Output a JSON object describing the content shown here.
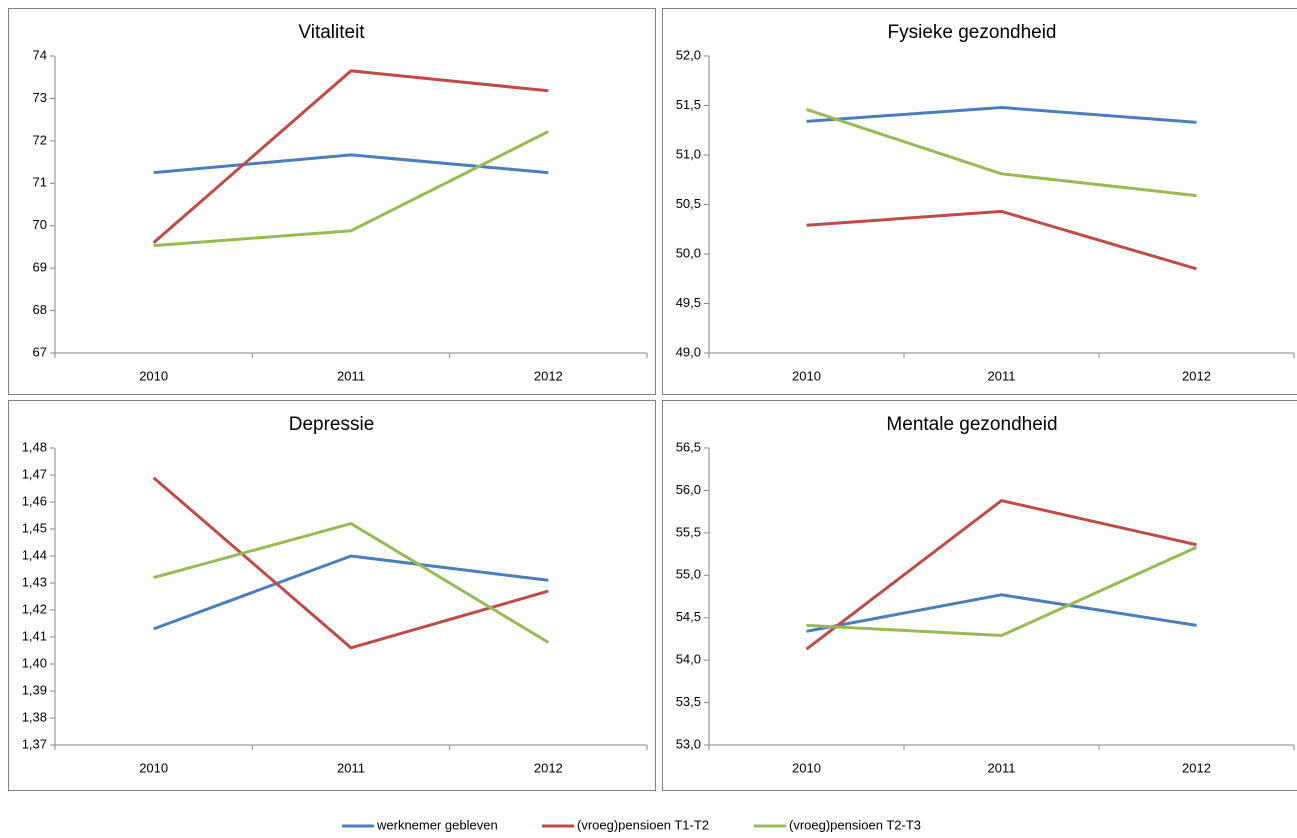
{
  "legend": {
    "series": [
      {
        "name": "werknemer gebleven",
        "color": "#4a7ebb"
      },
      {
        "name": "(vroeg)pensioen T1-T2",
        "color": "#be4b48"
      },
      {
        "name": "(vroeg)pensioen T2-T3",
        "color": "#98b954"
      }
    ]
  },
  "chart_data": [
    {
      "type": "line",
      "title": "Vitaliteit",
      "categories": [
        "2010",
        "2011",
        "2012"
      ],
      "ylim": [
        67,
        74
      ],
      "yticks": [
        67,
        68,
        69,
        70,
        71,
        72,
        73,
        74
      ],
      "series": [
        {
          "values": [
            71.25,
            71.67,
            71.25
          ]
        },
        {
          "values": [
            69.6,
            73.65,
            73.18
          ]
        },
        {
          "values": [
            69.53,
            69.88,
            72.22
          ]
        }
      ]
    },
    {
      "type": "line",
      "title": "Fysieke gezondheid",
      "categories": [
        "2010",
        "2011",
        "2012"
      ],
      "ylim": [
        49,
        52
      ],
      "yticks": [
        {
          "value": 49,
          "label": "49,0"
        },
        {
          "value": 49.5,
          "label": "49,5"
        },
        {
          "value": 50,
          "label": "50,0"
        },
        {
          "value": 50.5,
          "label": "50,5"
        },
        {
          "value": 51,
          "label": "51,0"
        },
        {
          "value": 51.5,
          "label": "51,5"
        },
        {
          "value": 52,
          "label": "52,0"
        }
      ],
      "series": [
        {
          "values": [
            51.34,
            51.48,
            51.33
          ]
        },
        {
          "values": [
            50.29,
            50.43,
            49.85
          ]
        },
        {
          "values": [
            51.46,
            50.81,
            50.59
          ]
        }
      ]
    },
    {
      "type": "line",
      "title": "Depressie",
      "categories": [
        "2010",
        "2011",
        "2012"
      ],
      "ylim": [
        1.37,
        1.48
      ],
      "yticks": [
        {
          "value": 1.37,
          "label": "1,37"
        },
        {
          "value": 1.38,
          "label": "1,38"
        },
        {
          "value": 1.39,
          "label": "1,39"
        },
        {
          "value": 1.4,
          "label": "1,40"
        },
        {
          "value": 1.41,
          "label": "1,41"
        },
        {
          "value": 1.42,
          "label": "1,42"
        },
        {
          "value": 1.43,
          "label": "1,43"
        },
        {
          "value": 1.44,
          "label": "1,44"
        },
        {
          "value": 1.45,
          "label": "1,45"
        },
        {
          "value": 1.46,
          "label": "1,46"
        },
        {
          "value": 1.47,
          "label": "1,47"
        },
        {
          "value": 1.48,
          "label": "1,48"
        }
      ],
      "series": [
        {
          "values": [
            1.413,
            1.44,
            1.431
          ]
        },
        {
          "values": [
            1.469,
            1.406,
            1.427
          ]
        },
        {
          "values": [
            1.432,
            1.452,
            1.408
          ]
        }
      ]
    },
    {
      "type": "line",
      "title": "Mentale gezondheid",
      "categories": [
        "2010",
        "2011",
        "2012"
      ],
      "ylim": [
        53,
        56.5
      ],
      "yticks": [
        {
          "value": 53,
          "label": "53,0"
        },
        {
          "value": 53.5,
          "label": "53,5"
        },
        {
          "value": 54,
          "label": "54,0"
        },
        {
          "value": 54.5,
          "label": "54,5"
        },
        {
          "value": 55,
          "label": "55,0"
        },
        {
          "value": 55.5,
          "label": "55,5"
        },
        {
          "value": 56,
          "label": "56,0"
        },
        {
          "value": 56.5,
          "label": "56,5"
        }
      ],
      "series": [
        {
          "values": [
            54.34,
            54.77,
            54.41
          ]
        },
        {
          "values": [
            54.13,
            55.88,
            55.36
          ]
        },
        {
          "values": [
            54.41,
            54.29,
            55.33
          ]
        }
      ]
    }
  ]
}
